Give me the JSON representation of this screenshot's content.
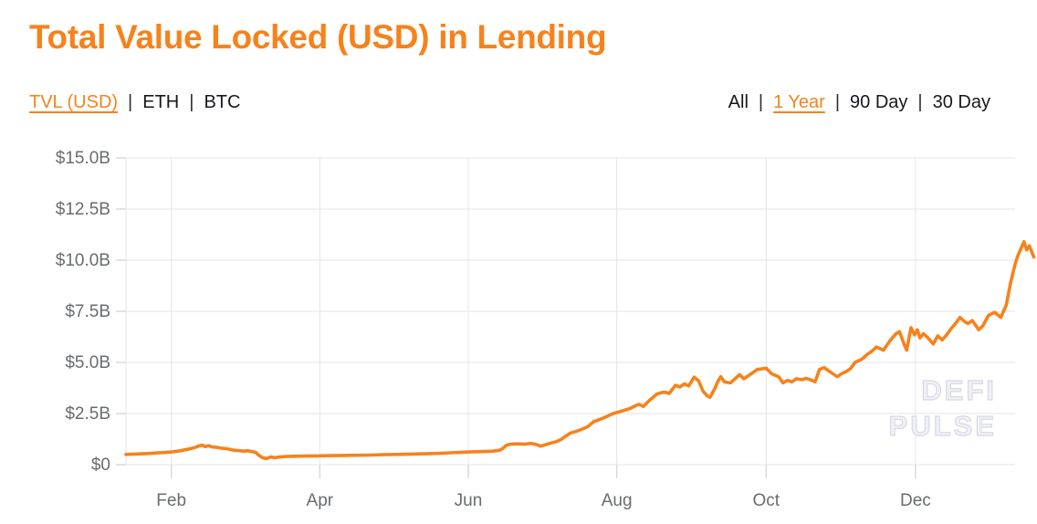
{
  "header": {
    "title": "Total Value Locked (USD) in Lending",
    "separator": "|",
    "metrics": {
      "items": [
        "TVL (USD)",
        "ETH",
        "BTC"
      ],
      "active": "TVL (USD)"
    },
    "ranges": {
      "items": [
        "All",
        "1 Year",
        "90 Day",
        "30 Day"
      ],
      "active": "1 Year"
    }
  },
  "watermark": {
    "line1": "DEFI",
    "line2": "PULSE"
  },
  "colors": {
    "accent": "#f6821c",
    "line": "#f6821c",
    "grid": "#e5e5e5",
    "tick": "#d9d9d9",
    "axis_text": "#696c70",
    "dark_text": "#17181b",
    "watermark": "#e9e9f0"
  },
  "chart_data": {
    "type": "line",
    "title": "Total Value Locked (USD) in Lending",
    "series_name": "TVL (USD) in Lending",
    "range_selected": "1 Year",
    "ylabel": "TVL (USD)",
    "ylim": [
      0,
      15
    ],
    "grid": true,
    "y_ticks": [
      {
        "label": "$0",
        "value": 0
      },
      {
        "label": "$2.5B",
        "value": 2.5
      },
      {
        "label": "$5.0B",
        "value": 5
      },
      {
        "label": "$7.5B",
        "value": 7.5
      },
      {
        "label": "$10.0B",
        "value": 10
      },
      {
        "label": "$12.5B",
        "value": 12.5
      },
      {
        "label": "$15.0B",
        "value": 15
      }
    ],
    "x_ticks": [
      {
        "label": "Feb",
        "t": 0.051
      },
      {
        "label": "Apr",
        "t": 0.218
      },
      {
        "label": "Jun",
        "t": 0.385
      },
      {
        "label": "Aug",
        "t": 0.552
      },
      {
        "label": "Oct",
        "t": 0.72
      },
      {
        "label": "Dec",
        "t": 0.888
      }
    ],
    "points_format": "[fraction_of_x_axis, TVL_in_billions_USD]",
    "points": [
      [
        0,
        0.5
      ],
      [
        0.01,
        0.52
      ],
      [
        0.022,
        0.54
      ],
      [
        0.034,
        0.57
      ],
      [
        0.045,
        0.6
      ],
      [
        0.053,
        0.63
      ],
      [
        0.061,
        0.68
      ],
      [
        0.069,
        0.75
      ],
      [
        0.077,
        0.83
      ],
      [
        0.082,
        0.92
      ],
      [
        0.086,
        0.95
      ],
      [
        0.089,
        0.88
      ],
      [
        0.093,
        0.93
      ],
      [
        0.097,
        0.86
      ],
      [
        0.102,
        0.85
      ],
      [
        0.107,
        0.81
      ],
      [
        0.113,
        0.78
      ],
      [
        0.12,
        0.72
      ],
      [
        0.126,
        0.69
      ],
      [
        0.132,
        0.66
      ],
      [
        0.137,
        0.68
      ],
      [
        0.142,
        0.64
      ],
      [
        0.146,
        0.6
      ],
      [
        0.15,
        0.44
      ],
      [
        0.154,
        0.33
      ],
      [
        0.158,
        0.3
      ],
      [
        0.163,
        0.38
      ],
      [
        0.167,
        0.34
      ],
      [
        0.172,
        0.37
      ],
      [
        0.18,
        0.4
      ],
      [
        0.19,
        0.41
      ],
      [
        0.2,
        0.42
      ],
      [
        0.215,
        0.43
      ],
      [
        0.23,
        0.44
      ],
      [
        0.245,
        0.45
      ],
      [
        0.26,
        0.46
      ],
      [
        0.275,
        0.47
      ],
      [
        0.29,
        0.49
      ],
      [
        0.305,
        0.5
      ],
      [
        0.32,
        0.52
      ],
      [
        0.335,
        0.53
      ],
      [
        0.35,
        0.55
      ],
      [
        0.365,
        0.58
      ],
      [
        0.385,
        0.62
      ],
      [
        0.4,
        0.64
      ],
      [
        0.413,
        0.66
      ],
      [
        0.42,
        0.7
      ],
      [
        0.424,
        0.8
      ],
      [
        0.428,
        0.95
      ],
      [
        0.432,
        1
      ],
      [
        0.44,
        1.02
      ],
      [
        0.448,
        1
      ],
      [
        0.455,
        1.04
      ],
      [
        0.462,
        0.98
      ],
      [
        0.466,
        0.9
      ],
      [
        0.47,
        0.95
      ],
      [
        0.475,
        1.02
      ],
      [
        0.478,
        1.06
      ],
      [
        0.482,
        1.1
      ],
      [
        0.486,
        1.16
      ],
      [
        0.49,
        1.25
      ],
      [
        0.494,
        1.38
      ],
      [
        0.5,
        1.55
      ],
      [
        0.506,
        1.62
      ],
      [
        0.512,
        1.72
      ],
      [
        0.519,
        1.85
      ],
      [
        0.526,
        2.1
      ],
      [
        0.531,
        2.18
      ],
      [
        0.537,
        2.28
      ],
      [
        0.542,
        2.38
      ],
      [
        0.547,
        2.48
      ],
      [
        0.552,
        2.55
      ],
      [
        0.56,
        2.65
      ],
      [
        0.567,
        2.75
      ],
      [
        0.574,
        2.9
      ],
      [
        0.577,
        2.95
      ],
      [
        0.582,
        2.85
      ],
      [
        0.589,
        3.15
      ],
      [
        0.597,
        3.45
      ],
      [
        0.602,
        3.52
      ],
      [
        0.606,
        3.55
      ],
      [
        0.611,
        3.48
      ],
      [
        0.618,
        3.88
      ],
      [
        0.623,
        3.8
      ],
      [
        0.628,
        3.95
      ],
      [
        0.633,
        3.85
      ],
      [
        0.639,
        4.28
      ],
      [
        0.644,
        4.1
      ],
      [
        0.649,
        3.6
      ],
      [
        0.654,
        3.35
      ],
      [
        0.657,
        3.3
      ],
      [
        0.662,
        3.7
      ],
      [
        0.666,
        4.1
      ],
      [
        0.669,
        4.3
      ],
      [
        0.673,
        4.05
      ],
      [
        0.68,
        4
      ],
      [
        0.685,
        4.2
      ],
      [
        0.69,
        4.4
      ],
      [
        0.695,
        4.2
      ],
      [
        0.7,
        4.35
      ],
      [
        0.705,
        4.5
      ],
      [
        0.71,
        4.65
      ],
      [
        0.72,
        4.72
      ],
      [
        0.726,
        4.45
      ],
      [
        0.734,
        4.3
      ],
      [
        0.739,
        4
      ],
      [
        0.744,
        4.12
      ],
      [
        0.749,
        4.05
      ],
      [
        0.754,
        4.2
      ],
      [
        0.76,
        4.15
      ],
      [
        0.765,
        4.22
      ],
      [
        0.77,
        4.15
      ],
      [
        0.775,
        4.05
      ],
      [
        0.78,
        4.65
      ],
      [
        0.785,
        4.75
      ],
      [
        0.79,
        4.6
      ],
      [
        0.795,
        4.45
      ],
      [
        0.8,
        4.3
      ],
      [
        0.805,
        4.45
      ],
      [
        0.81,
        4.55
      ],
      [
        0.815,
        4.7
      ],
      [
        0.82,
        5
      ],
      [
        0.825,
        5.1
      ],
      [
        0.829,
        5.2
      ],
      [
        0.834,
        5.4
      ],
      [
        0.839,
        5.55
      ],
      [
        0.844,
        5.75
      ],
      [
        0.852,
        5.6
      ],
      [
        0.859,
        6.05
      ],
      [
        0.866,
        6.4
      ],
      [
        0.87,
        6.5
      ],
      [
        0.875,
        5.9
      ],
      [
        0.878,
        5.6
      ],
      [
        0.883,
        6.7
      ],
      [
        0.887,
        6.35
      ],
      [
        0.89,
        6.6
      ],
      [
        0.893,
        6.2
      ],
      [
        0.897,
        6.4
      ],
      [
        0.902,
        6.2
      ],
      [
        0.908,
        5.9
      ],
      [
        0.913,
        6.3
      ],
      [
        0.918,
        6.1
      ],
      [
        0.923,
        6.35
      ],
      [
        0.928,
        6.65
      ],
      [
        0.933,
        6.9
      ],
      [
        0.938,
        7.2
      ],
      [
        0.943,
        7
      ],
      [
        0.947,
        6.9
      ],
      [
        0.952,
        7.05
      ],
      [
        0.959,
        6.6
      ],
      [
        0.964,
        6.8
      ],
      [
        0.97,
        7.3
      ],
      [
        0.977,
        7.45
      ],
      [
        0.984,
        7.2
      ],
      [
        0.99,
        7.8
      ],
      [
        0.995,
        8.9
      ],
      [
        1,
        9.8
      ],
      [
        1.003,
        10.2
      ],
      [
        1.01,
        10.9
      ],
      [
        1.013,
        10.5
      ],
      [
        1.016,
        10.7
      ],
      [
        1.021,
        10.15
      ]
    ]
  }
}
